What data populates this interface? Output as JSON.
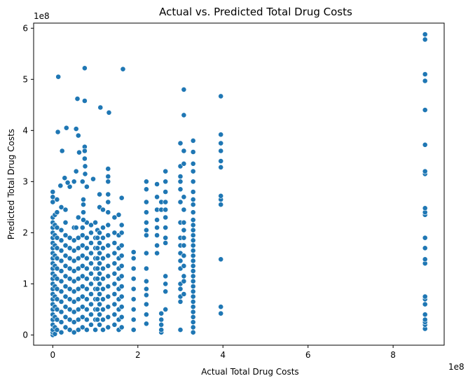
{
  "chart_data": {
    "type": "scatter",
    "title": "Actual vs. Predicted Total Drug Costs",
    "xlabel": "Actual Total Drug Costs",
    "ylabel": "Predicted Total Drug Costs",
    "x_offset_label": "1e8",
    "y_offset_label": "1e8",
    "xlim": [
      -0.45,
      9.2
    ],
    "ylim": [
      -0.2,
      6.1
    ],
    "x_ticks": [
      0,
      2,
      4,
      6,
      8
    ],
    "x_tick_labels": [
      "0",
      "2",
      "4",
      "6",
      "8"
    ],
    "y_ticks": [
      0,
      1,
      2,
      3,
      4,
      5,
      6
    ],
    "y_tick_labels": [
      "0",
      "1",
      "2",
      "3",
      "4",
      "5",
      "6"
    ],
    "grid": false,
    "point_color": "#1f77b4",
    "series": [
      {
        "columns": [
          {
            "x": 0.0,
            "y": [
              0.0,
              0.05,
              0.1,
              0.2,
              0.3,
              0.4,
              0.5,
              0.6,
              0.7,
              0.8,
              0.9,
              1.0,
              1.1,
              1.2,
              1.3,
              1.4,
              1.5,
              1.6,
              1.7,
              1.8,
              1.9,
              2.0,
              2.1,
              2.2,
              2.3,
              2.6,
              2.7,
              2.8
            ]
          },
          {
            "x": 0.05,
            "y": [
              0.02,
              0.15,
              0.35,
              0.55,
              0.75,
              0.95,
              1.15,
              1.35,
              1.55,
              1.75,
              1.95,
              2.15,
              2.35
            ]
          },
          {
            "x": 0.1,
            "y": [
              0.1,
              0.3,
              0.5,
              0.7,
              0.9,
              1.1,
              1.3,
              1.5,
              1.7,
              1.9,
              2.1,
              2.4,
              2.65
            ]
          },
          {
            "x": 0.2,
            "y": [
              0.05,
              0.25,
              0.45,
              0.65,
              0.85,
              1.05,
              1.25,
              1.45,
              1.65,
              1.85,
              2.05,
              2.5
            ]
          },
          {
            "x": 0.3,
            "y": [
              0.15,
              0.35,
              0.55,
              0.75,
              0.95,
              1.15,
              1.35,
              1.55,
              1.75,
              1.95,
              2.2,
              2.45
            ]
          },
          {
            "x": 0.4,
            "y": [
              0.1,
              0.3,
              0.5,
              0.7,
              0.9,
              1.1,
              1.3,
              1.5,
              1.7,
              1.9,
              2.9
            ]
          },
          {
            "x": 0.5,
            "y": [
              0.05,
              0.25,
              0.45,
              0.65,
              0.85,
              1.05,
              1.25,
              1.45,
              1.65,
              1.85,
              2.1,
              3.0
            ]
          },
          {
            "x": 0.6,
            "y": [
              0.1,
              0.3,
              0.5,
              0.7,
              0.9,
              1.1,
              1.3,
              1.5,
              1.7,
              1.9,
              2.3
            ]
          },
          {
            "x": 0.7,
            "y": [
              0.15,
              0.35,
              0.55,
              0.75,
              0.95,
              1.15,
              1.35,
              1.55,
              1.75,
              1.95,
              2.1,
              3.0
            ]
          },
          {
            "x": 0.8,
            "y": [
              0.1,
              0.3,
              0.5,
              0.7,
              0.9,
              1.1,
              1.3,
              1.5,
              1.7,
              1.9,
              2.2,
              2.9
            ]
          },
          {
            "x": 0.9,
            "y": [
              0.2,
              0.4,
              0.6,
              0.8,
              1.0,
              1.2,
              1.4,
              1.6,
              1.8,
              2.0,
              2.15
            ]
          },
          {
            "x": 1.0,
            "y": [
              0.1,
              0.3,
              0.5,
              0.7,
              0.9,
              1.1,
              1.3,
              1.5,
              1.7,
              1.9,
              2.2
            ]
          },
          {
            "x": 0.12,
            "y": [
              3.97
            ]
          },
          {
            "x": 0.13,
            "y": [
              5.05
            ]
          },
          {
            "x": 0.18,
            "y": [
              2.92
            ]
          },
          {
            "x": 0.22,
            "y": [
              3.6
            ]
          },
          {
            "x": 0.28,
            "y": [
              3.07
            ]
          },
          {
            "x": 0.35,
            "y": [
              2.98
            ]
          },
          {
            "x": 0.32,
            "y": [
              4.05
            ]
          },
          {
            "x": 0.55,
            "y": [
              2.1,
              3.2
            ]
          },
          {
            "x": 0.58,
            "y": [
              4.62
            ]
          },
          {
            "x": 0.55,
            "y": [
              4.03
            ]
          },
          {
            "x": 0.6,
            "y": [
              3.9
            ]
          },
          {
            "x": 0.62,
            "y": [
              3.57
            ]
          },
          {
            "x": 0.75,
            "y": [
              5.22
            ]
          },
          {
            "x": 0.75,
            "y": [
              4.58
            ]
          },
          {
            "x": 0.75,
            "y": [
              3.68,
              3.6,
              3.45
            ]
          },
          {
            "x": 0.72,
            "y": [
              2.65,
              2.55
            ]
          },
          {
            "x": 0.76,
            "y": [
              3.15,
              3.3
            ]
          },
          {
            "x": 0.72,
            "y": [
              2.4,
              2.25
            ]
          },
          {
            "x": 0.95,
            "y": [
              3.05
            ]
          },
          {
            "x": 1.05,
            "y": [
              0.3,
              0.5,
              0.7,
              0.9,
              1.1,
              1.3,
              1.5,
              1.7,
              1.9,
              2.05
            ]
          },
          {
            "x": 1.1,
            "y": [
              0.2,
              0.4,
              0.6,
              0.8,
              1.0,
              1.2,
              1.4,
              1.6,
              1.8,
              2.0,
              2.5,
              2.75
            ]
          },
          {
            "x": 1.12,
            "y": [
              4.45
            ]
          },
          {
            "x": 1.18,
            "y": [
              0.1,
              0.3,
              0.5,
              0.7,
              0.9,
              1.1,
              1.3,
              1.5,
              1.7,
              1.9,
              2.1,
              2.45
            ]
          },
          {
            "x": 1.3,
            "y": [
              0.15,
              0.35,
              0.55,
              0.75,
              0.95,
              1.15,
              1.35,
              1.55,
              1.75,
              1.95,
              2.15,
              2.4,
              2.6,
              2.75,
              3.0,
              3.1,
              3.25
            ]
          },
          {
            "x": 1.32,
            "y": [
              4.35
            ]
          },
          {
            "x": 1.45,
            "y": [
              0.2,
              0.4,
              0.6,
              0.8,
              1.0,
              1.2,
              1.4,
              1.6,
              1.8,
              2.0,
              2.3
            ]
          },
          {
            "x": 1.55,
            "y": [
              0.1,
              0.3,
              0.5,
              0.7,
              0.9,
              1.1,
              1.3,
              1.5,
              1.7,
              1.95,
              2.35
            ]
          },
          {
            "x": 1.62,
            "y": [
              0.15,
              0.35,
              0.55,
              0.75,
              0.95,
              1.15,
              1.35,
              1.55,
              1.75,
              2.0,
              2.15,
              2.68
            ]
          },
          {
            "x": 1.65,
            "y": [
              5.2
            ]
          },
          {
            "x": 1.9,
            "y": [
              0.1,
              0.3,
              0.5,
              0.7,
              0.9,
              1.1,
              1.3,
              1.5,
              1.62
            ]
          },
          {
            "x": 2.2,
            "y": [
              0.22,
              0.4,
              0.6,
              0.78,
              0.9,
              1.05,
              1.3,
              1.6,
              1.95,
              2.05,
              2.2,
              2.4,
              2.6,
              2.85,
              3.0
            ]
          },
          {
            "x": 2.45,
            "y": [
              1.6,
              1.75,
              1.95,
              2.1,
              2.25,
              2.45,
              2.7,
              2.95
            ]
          },
          {
            "x": 2.55,
            "y": [
              0.05,
              0.1,
              0.2,
              0.3,
              0.42,
              2.45,
              2.6
            ]
          },
          {
            "x": 2.65,
            "y": [
              0.5,
              0.85,
              1.0,
              1.15,
              1.8,
              1.9,
              2.1,
              2.3,
              2.45,
              2.6,
              2.8,
              3.0,
              3.2
            ]
          },
          {
            "x": 3.0,
            "y": [
              0.1,
              0.65,
              0.75,
              0.9,
              1.0,
              1.3,
              1.45,
              1.6,
              1.75,
              1.9,
              2.2,
              2.6,
              2.85,
              3.0,
              3.1,
              3.3,
              3.75
            ]
          },
          {
            "x": 3.08,
            "y": [
              0.8,
              1.05,
              1.15,
              1.35,
              1.55,
              1.75,
              1.9,
              2.05,
              2.2,
              2.45,
              2.7,
              3.35,
              3.6,
              4.3,
              4.8
            ]
          },
          {
            "x": 3.3,
            "y": [
              0.05,
              0.15,
              0.25,
              0.35,
              0.45,
              0.55,
              0.65,
              0.75,
              0.85,
              0.95,
              1.05,
              1.15,
              1.25,
              1.35,
              1.45,
              1.55,
              1.65,
              1.75,
              1.85,
              1.95,
              2.05,
              2.15,
              2.25,
              2.4,
              2.55,
              2.65,
              2.8,
              3.0,
              3.2,
              3.35,
              3.58,
              3.8
            ]
          },
          {
            "x": 3.95,
            "y": [
              0.42,
              0.55,
              1.48,
              2.55,
              2.65,
              2.72,
              3.28,
              3.4,
              3.6,
              3.75,
              3.92,
              4.67
            ]
          },
          {
            "x": 8.75,
            "y": [
              0.12,
              0.2,
              0.25,
              0.3,
              0.4,
              0.6,
              0.7,
              0.75,
              1.4,
              1.48,
              1.7,
              1.9,
              2.35,
              2.4,
              2.48,
              3.15,
              3.2,
              3.72,
              4.4,
              4.97,
              5.1,
              5.78,
              5.88
            ]
          }
        ]
      }
    ]
  }
}
